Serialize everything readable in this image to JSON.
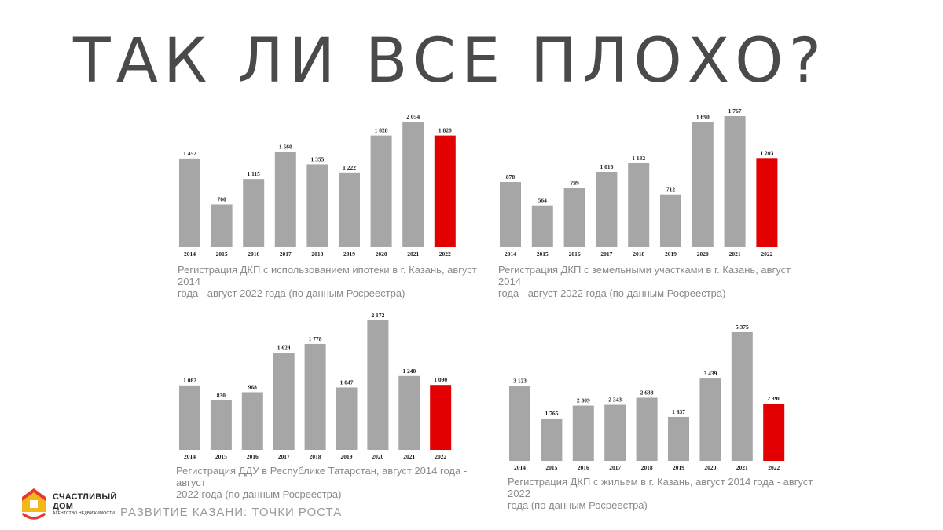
{
  "page": {
    "title": "ТАК ЛИ ВСЕ ПЛОХО?",
    "subtitle": "РАЗВИТИЕ КАЗАНИ: ТОЧКИ РОСТА",
    "brand_name_line1": "СЧАСТЛИВЫЙ",
    "brand_name_line2": "ДОМ",
    "brand_tagline": "АГЕНТСТВО НЕДВИЖИМОСТИ",
    "colors": {
      "bar": "#a6a6a6",
      "highlight": "#e30000",
      "logo_red": "#e53a2f",
      "logo_yellow": "#f2b818"
    }
  },
  "chart_data": [
    {
      "type": "bar",
      "categories": [
        "2014",
        "2015",
        "2016",
        "2017",
        "2018",
        "2019",
        "2020",
        "2021",
        "2022"
      ],
      "values": [
        1452,
        700,
        1115,
        1560,
        1355,
        1222,
        1828,
        2054,
        1828
      ],
      "value_labels": [
        "1 452",
        "700",
        "1 115",
        "1 560",
        "1 355",
        "1 222",
        "1 828",
        "2 054",
        "1 828"
      ],
      "highlight_index": 8,
      "caption_line1": "Регистрация ДКП с использованием ипотеки в г. Казань, август 2014",
      "caption_line2": "года - август 2022 года (по данным Росреестра)",
      "ylim": [
        0,
        2054
      ]
    },
    {
      "type": "bar",
      "categories": [
        "2014",
        "2015",
        "2016",
        "2017",
        "2018",
        "2019",
        "2020",
        "2021",
        "2022"
      ],
      "values": [
        878,
        564,
        799,
        1016,
        1132,
        712,
        1690,
        1767,
        1203
      ],
      "value_labels": [
        "878",
        "564",
        "799",
        "1 016",
        "1 132",
        "712",
        "1 690",
        "1 767",
        "1 203"
      ],
      "highlight_index": 8,
      "caption_line1": "Регистрация ДКП с земельными участками в г. Казань, август 2014",
      "caption_line2": "года - август 2022 года (по данным Росреестра)",
      "ylim": [
        0,
        1767
      ]
    },
    {
      "type": "bar",
      "categories": [
        "2014",
        "2015",
        "2016",
        "2017",
        "2018",
        "2019",
        "2020",
        "2021",
        "2022"
      ],
      "values": [
        1082,
        830,
        968,
        1624,
        1778,
        1047,
        2172,
        1240,
        1090
      ],
      "value_labels": [
        "1 082",
        "830",
        "968",
        "1 624",
        "1 778",
        "1 047",
        "2 172",
        "1 240",
        "1 090"
      ],
      "highlight_index": 8,
      "caption_line1": "Регистрация ДДУ в Республике Татарстан, август 2014 года - август",
      "caption_line2": "2022 года (по данным Росреестра)",
      "ylim": [
        0,
        2172
      ]
    },
    {
      "type": "bar",
      "categories": [
        "2014",
        "2015",
        "2016",
        "2017",
        "2018",
        "2019",
        "2020",
        "2021",
        "2022"
      ],
      "values": [
        3123,
        1765,
        2309,
        2343,
        2638,
        1837,
        3439,
        5375,
        2390
      ],
      "value_labels": [
        "3 123",
        "1 765",
        "2 309",
        "2 343",
        "2 638",
        "1 837",
        "3 439",
        "5 375",
        "2 390"
      ],
      "highlight_index": 8,
      "caption_line1": "Регистрация ДКП с жильем в г. Казань, август 2014 года - август 2022",
      "caption_line2": "года (по данным Росреестра)",
      "ylim": [
        0,
        5375
      ]
    }
  ]
}
